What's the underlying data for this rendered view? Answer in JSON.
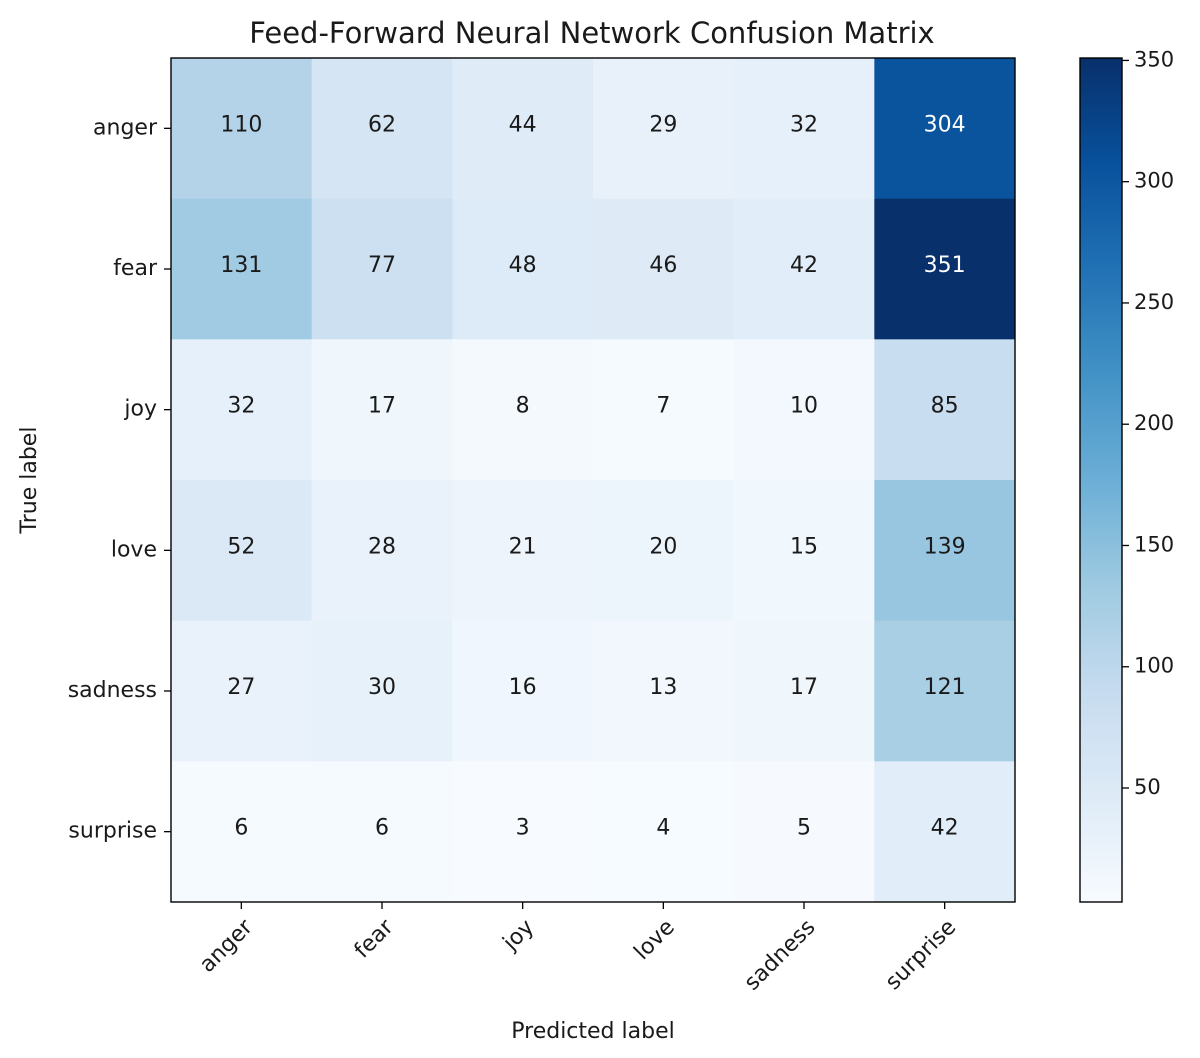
{
  "chart_data": {
    "type": "heatmap",
    "title": "Feed-Forward Neural Network Confusion Matrix",
    "xlabel": "Predicted label",
    "ylabel": "True label",
    "x_categories": [
      "anger",
      "fear",
      "joy",
      "love",
      "sadness",
      "surprise"
    ],
    "y_categories": [
      "anger",
      "fear",
      "joy",
      "love",
      "sadness",
      "surprise"
    ],
    "values": [
      [
        110,
        62,
        44,
        29,
        32,
        304
      ],
      [
        131,
        77,
        48,
        46,
        42,
        351
      ],
      [
        32,
        17,
        8,
        7,
        10,
        85
      ],
      [
        52,
        28,
        21,
        20,
        15,
        139
      ],
      [
        27,
        30,
        16,
        13,
        17,
        121
      ],
      [
        6,
        6,
        3,
        4,
        5,
        42
      ]
    ],
    "colormap": "Blues",
    "color_range": [
      3,
      351
    ],
    "colorbar_ticks": [
      50,
      100,
      150,
      200,
      250,
      300,
      350
    ],
    "x_tick_rotation_deg": 45
  }
}
